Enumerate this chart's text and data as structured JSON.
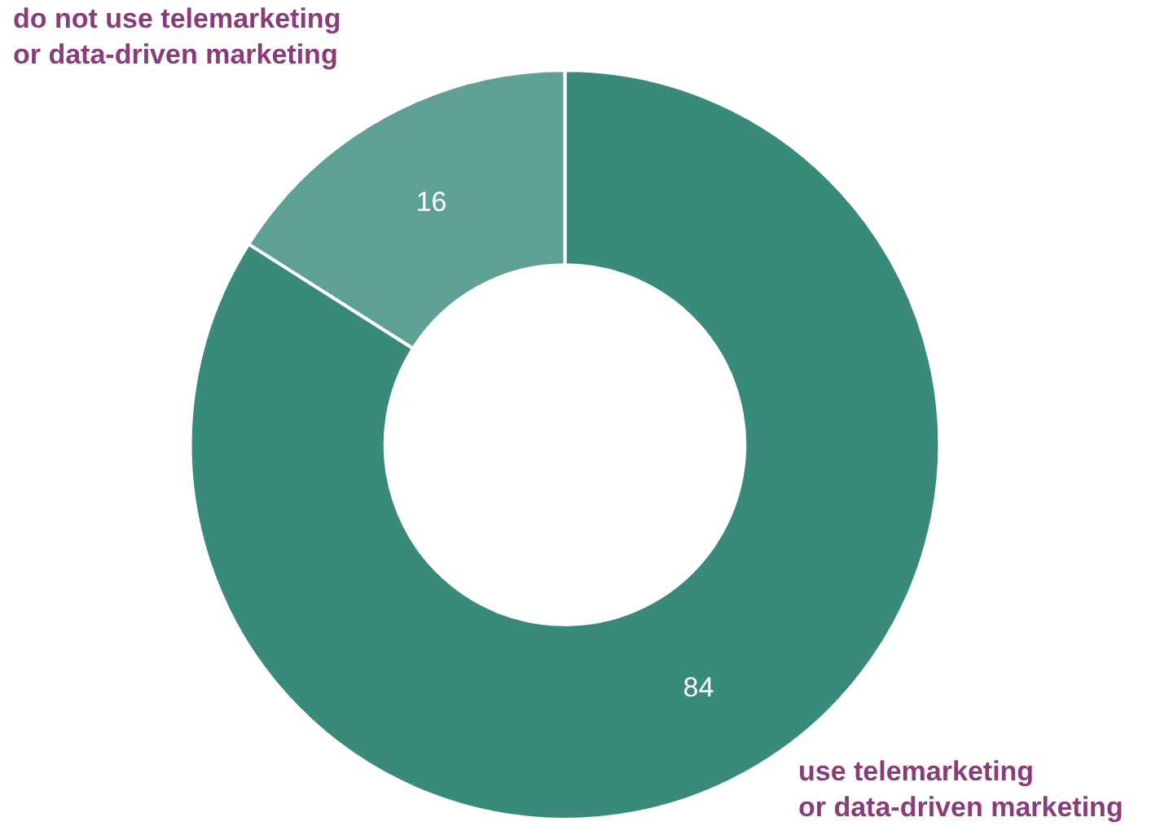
{
  "chart_data": {
    "type": "donut",
    "categories": [
      "use telemarketing\nor data-driven marketing",
      "do not use telemarketing\nor data-driven marketing"
    ],
    "values": [
      84,
      16
    ],
    "colors": [
      "#3a8a7c",
      "#5fa094"
    ],
    "data_labels": true,
    "legend": false
  }
}
